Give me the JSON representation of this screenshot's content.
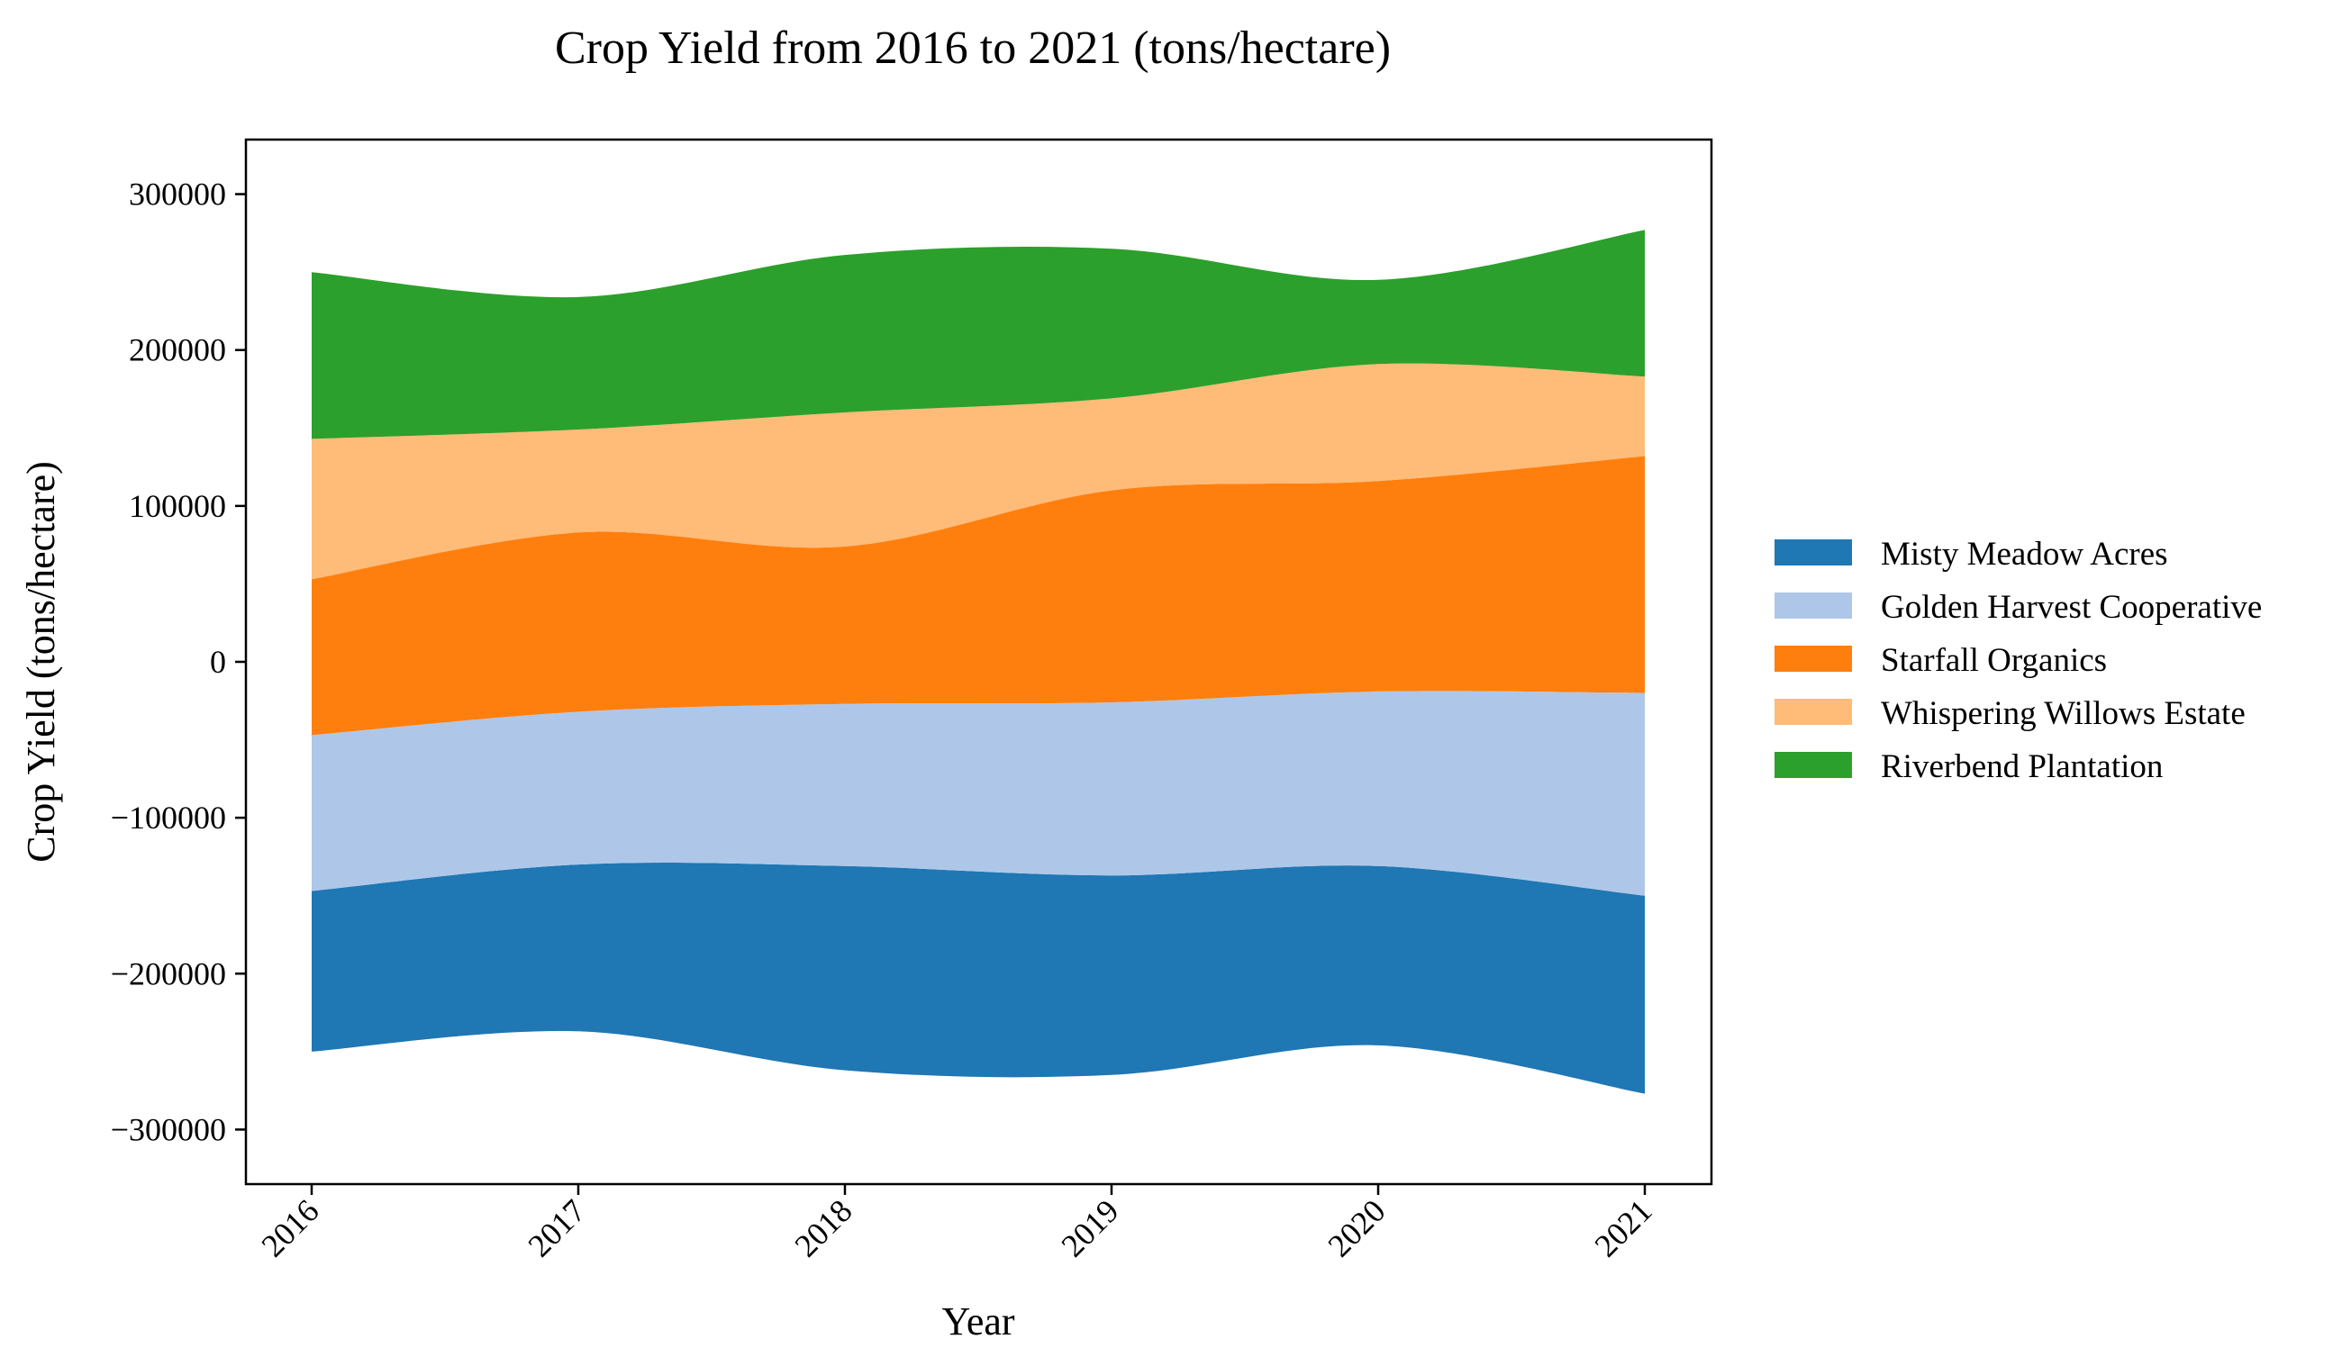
{
  "chart_data": {
    "type": "area",
    "subtype": "streamgraph",
    "title": "Crop Yield from 2016 to 2021 (tons/hectare)",
    "xlabel": "Year",
    "ylabel": "Crop Yield (tons/hectare)",
    "x": [
      "2016",
      "2017",
      "2018",
      "2019",
      "2020",
      "2021"
    ],
    "ylim": [
      -335000,
      335000
    ],
    "yticks": [
      -300000,
      -200000,
      -100000,
      0,
      100000,
      200000,
      300000
    ],
    "ytick_labels": [
      "−300000",
      "−200000",
      "−100000",
      "0",
      "100000",
      "200000",
      "300000"
    ],
    "baseline": [
      -250000,
      -237000,
      -262000,
      -265000,
      -246000,
      -277000
    ],
    "series": [
      {
        "name": "Misty Meadow Acres",
        "color": "#1f77b4",
        "values": [
          103000,
          107000,
          131000,
          128000,
          115000,
          127000
        ]
      },
      {
        "name": "Golden Harvest Cooperative",
        "color": "#aec7e8",
        "values": [
          100000,
          98000,
          104000,
          111000,
          112000,
          130000
        ]
      },
      {
        "name": "Starfall Organics",
        "color": "#ff7f0e",
        "values": [
          100000,
          115000,
          101000,
          136000,
          135000,
          152000
        ]
      },
      {
        "name": "Whispering Willows Estate",
        "color": "#ffbb78",
        "values": [
          90000,
          66000,
          86000,
          59000,
          75000,
          51000
        ]
      },
      {
        "name": "Riverbend Plantation",
        "color": "#2ca02c",
        "values": [
          107000,
          85000,
          101000,
          96000,
          54000,
          94000
        ]
      }
    ],
    "legend_position": "right",
    "grid": false
  }
}
